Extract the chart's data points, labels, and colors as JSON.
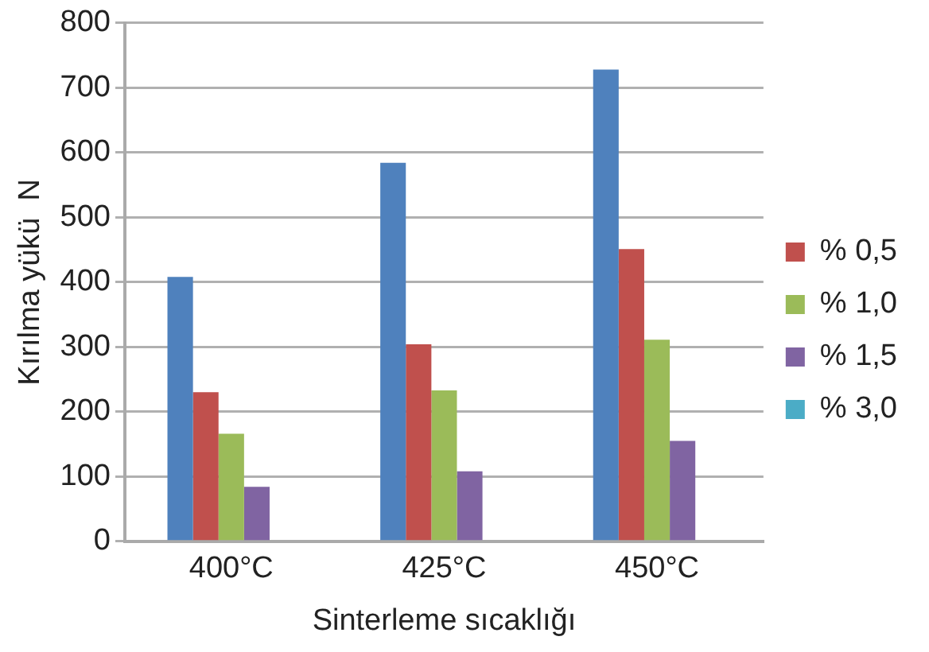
{
  "chart_data": {
    "type": "bar",
    "xlabel": "Sinterleme sıcaklığı",
    "ylabel": "Kırılma yükü  N",
    "categories": [
      "400°C",
      "425°C",
      "450°C"
    ],
    "series": [
      {
        "color": "#4f81bd",
        "values": [
          408,
          584,
          728
        ]
      },
      {
        "name": "% 0,5",
        "color": "#c0504d",
        "values": [
          230,
          304,
          451
        ]
      },
      {
        "name": "% 1,0",
        "color": "#9bbb59",
        "values": [
          166,
          233,
          311
        ]
      },
      {
        "name": "% 1,5",
        "color": "#8064a2",
        "values": [
          84,
          108,
          155
        ]
      },
      {
        "name": "% 3,0",
        "color": "#4bacc6",
        "values": [
          null,
          null,
          null
        ]
      }
    ],
    "ylim": [
      0,
      800
    ],
    "yticks": [
      0,
      100,
      200,
      300,
      400,
      500,
      600,
      700,
      800
    ],
    "grid": "y",
    "legend": "right"
  }
}
